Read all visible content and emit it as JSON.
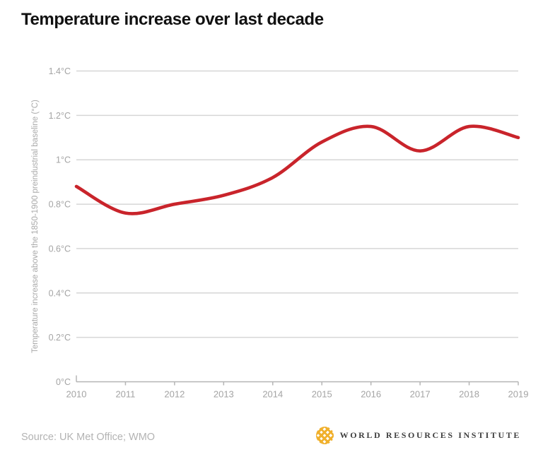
{
  "page": {
    "title": "Temperature increase over last decade"
  },
  "chart_data": {
    "type": "line",
    "x": [
      2010,
      2011,
      2012,
      2013,
      2014,
      2015,
      2016,
      2017,
      2018,
      2019
    ],
    "series": [
      {
        "name": "Temperature increase above preindustrial baseline",
        "values": [
          0.88,
          0.76,
          0.8,
          0.84,
          0.92,
          1.08,
          1.15,
          1.04,
          1.15,
          1.1
        ],
        "color": "#c9242b"
      }
    ],
    "title": "Temperature increase over last decade",
    "xlabel": "",
    "ylabel": "Temperature increase above the 1850-1900 preindustrial baseline (°C)",
    "ylim": [
      0,
      1.4
    ],
    "ytick_step": 0.2,
    "ytick_labels": [
      "0°C",
      "0.2°C",
      "0.4°C",
      "0.6°C",
      "0.8°C",
      "1°C",
      "1.2°C",
      "1.4°C"
    ],
    "grid": true,
    "legend": false,
    "smooth": true
  },
  "footer": {
    "source": "Source: UK Met Office; WMO",
    "org": "WORLD RESOURCES INSTITUTE"
  },
  "icons": {
    "logo": "wri-woven-globe-icon"
  },
  "colors": {
    "background": "#ffffff",
    "line": "#c9242b",
    "grid": "#d6d6d6",
    "axis": "#b5b5b5",
    "tick_text": "#a4a4a4",
    "axis_label_text": "#a9a9a9",
    "title": "#111111",
    "source_text": "#b3b3b3",
    "org_text": "#3f3f3f",
    "logo_gold": "#f0b02c"
  }
}
